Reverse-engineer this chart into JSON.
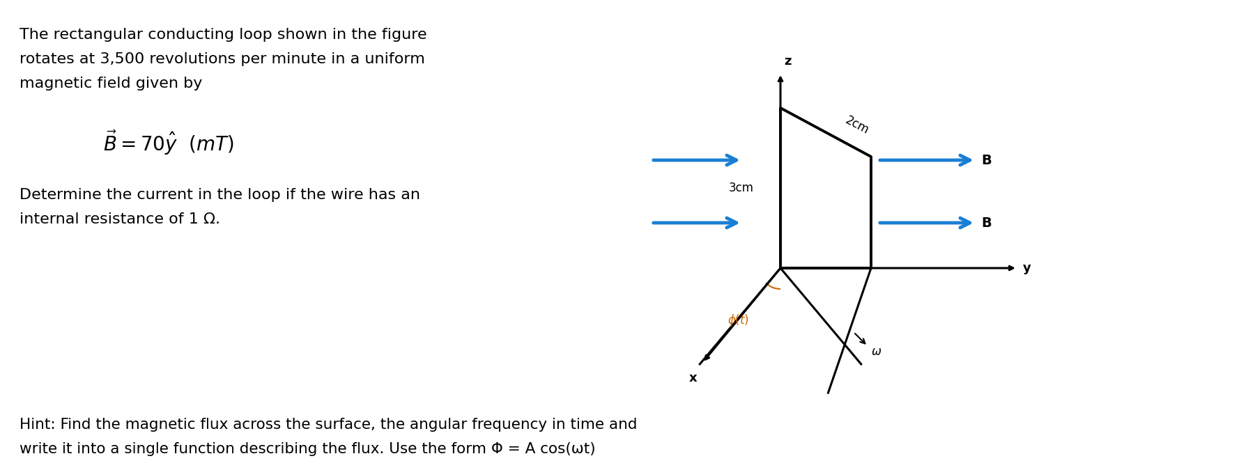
{
  "bg_color": "#ffffff",
  "text_color": "#000000",
  "blue_arrow_color": "#1a7fd4",
  "diagram_color": "#000000",
  "line1": "The rectangular conducting loop shown in the figure",
  "line2": "rotates at 3,500 revolutions per minute in a uniform",
  "line3": "magnetic field given by",
  "eq_B": "$\\vec{B} = 70\\hat{y}$  $(mT)$",
  "line4": "Determine the current in the loop if the wire has an",
  "line5": "internal resistance of 1 Ω.",
  "hint_line1": "Hint: Find the magnetic flux across the surface, the angular frequency in time and",
  "hint_line2": "write it into a single function describing the flux. Use the form Φ = A cos(ωt)",
  "label_2cm": "2cm",
  "label_3cm": "3cm",
  "label_B1": "B",
  "label_B2": "B",
  "label_phi": "$\\phi(t)$",
  "label_omega": "$\\omega$",
  "label_z": "z",
  "label_y": "y",
  "label_x": "x",
  "fontsize_main": 16,
  "fontsize_eq": 20,
  "fontsize_hint": 15.5,
  "fontsize_diagram": 13
}
